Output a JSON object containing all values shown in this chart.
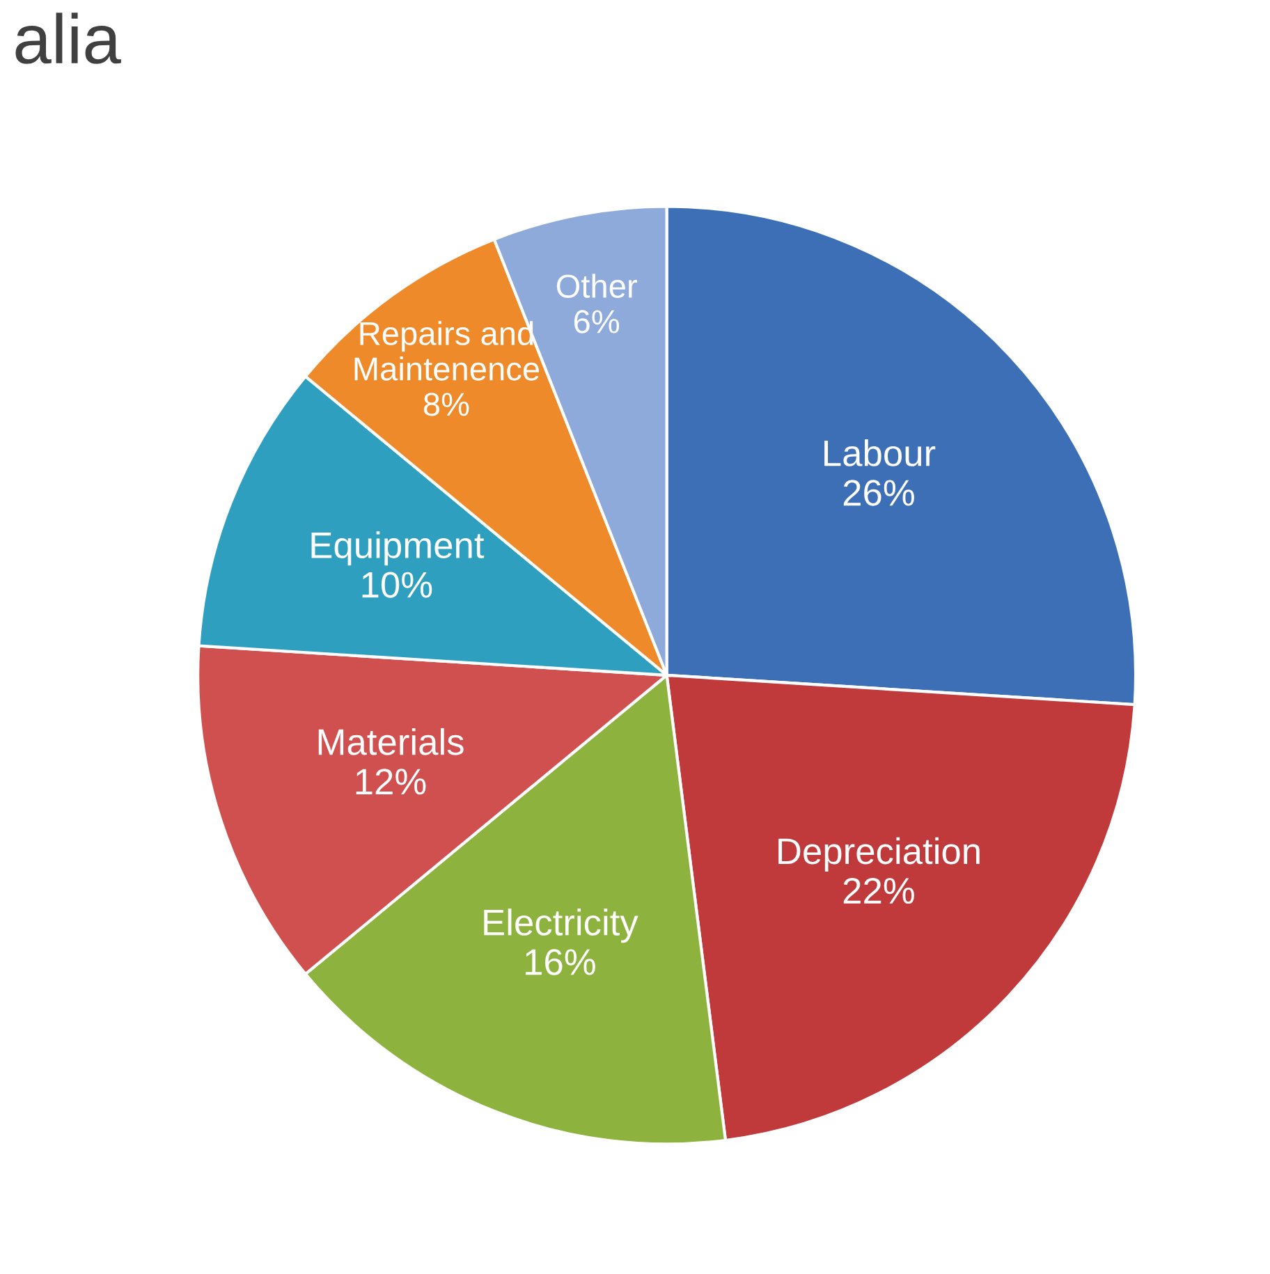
{
  "chart_data": {
    "type": "pie",
    "title": "alia",
    "categories": [
      "Labour",
      "Depreciation",
      "Electricity",
      "Materials",
      "Equipment",
      "Repairs and\nMaintenence",
      "Other"
    ],
    "values": [
      26,
      22,
      16,
      12,
      10,
      8,
      6
    ],
    "value_labels": [
      "26%",
      "22%",
      "16%",
      "12%",
      "10%",
      "8%",
      "6%"
    ],
    "colors": [
      "#3c6fb6",
      "#c0393b",
      "#8db33e",
      "#d0504f",
      "#2e9fbf",
      "#ee8a2a",
      "#8eaadb"
    ]
  }
}
